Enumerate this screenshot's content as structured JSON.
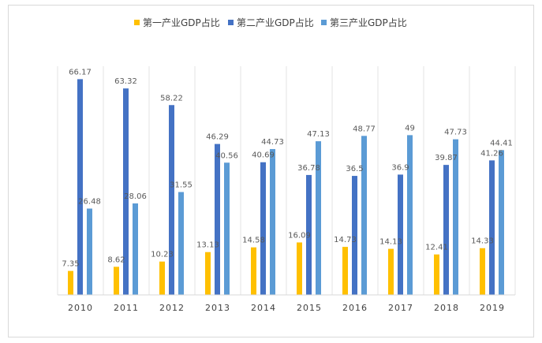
{
  "chart_data": {
    "type": "bar",
    "categories": [
      "2010",
      "2011",
      "2012",
      "2013",
      "2014",
      "2015",
      "2016",
      "2017",
      "2018",
      "2019"
    ],
    "series": [
      {
        "name": "第一产业GDP占比",
        "color": "#FFC000",
        "values": [
          7.35,
          8.62,
          10.23,
          13.13,
          14.58,
          16.09,
          14.73,
          14.13,
          12.41,
          14.33
        ],
        "labels": [
          "7.35",
          "8.62",
          "10.23",
          "13.13",
          "14.58",
          "16.09",
          "14.73",
          "14.13",
          "12.41",
          "14.33"
        ]
      },
      {
        "name": "第二产业GDP占比",
        "color": "#4472C4",
        "values": [
          66.17,
          63.32,
          58.22,
          46.29,
          40.69,
          36.78,
          36.5,
          36.9,
          39.87,
          41.26
        ],
        "labels": [
          "66.17",
          "63.32",
          "58.22",
          "46.29",
          "40.69",
          "36.78",
          "36.5",
          "36.9",
          "39.87",
          "41.26"
        ]
      },
      {
        "name": "第三产业GDP占比",
        "color": "#5B9BD5",
        "values": [
          26.48,
          28.06,
          31.55,
          40.56,
          44.73,
          47.13,
          48.77,
          49,
          47.73,
          44.41
        ],
        "labels": [
          "26.48",
          "28.06",
          "31.55",
          "40.56",
          "44.73",
          "47.13",
          "48.77",
          "49",
          "47.73",
          "44.41"
        ]
      }
    ],
    "ylim": [
      0,
      70
    ],
    "grid": "vertical-category-separators",
    "legend_position": "top-center",
    "title": "",
    "xlabel": "",
    "ylabel": ""
  }
}
